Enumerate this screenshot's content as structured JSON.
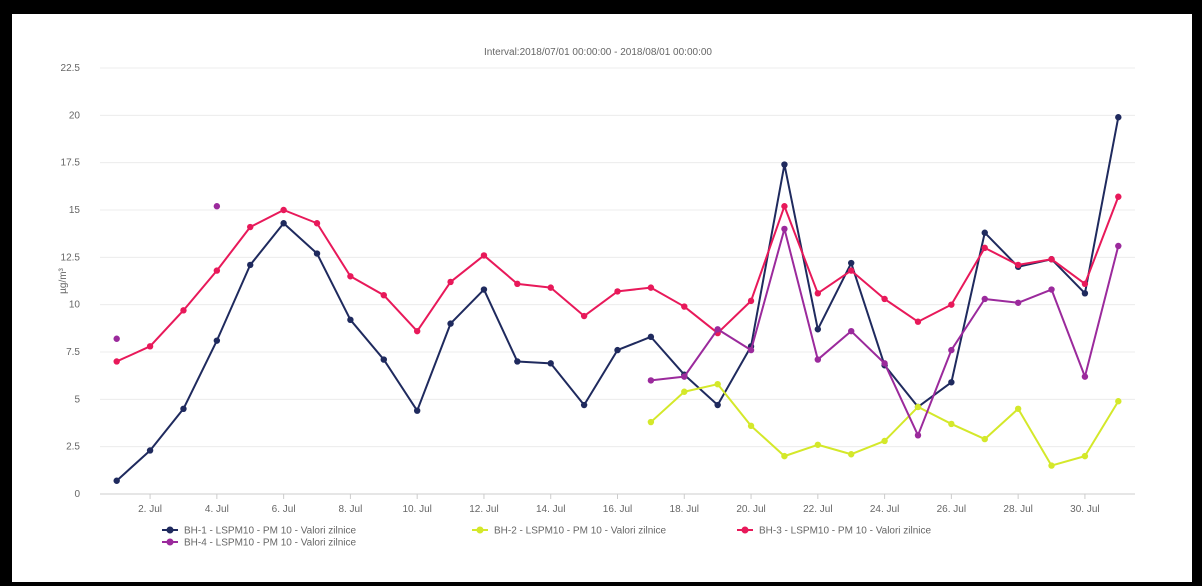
{
  "chart_data": {
    "type": "line",
    "title": "Interval:2018/07/01 00:00:00 - 2018/08/01 00:00:00",
    "ylabel": "µg/m³",
    "xlabel": "",
    "ylim": [
      0,
      22.5
    ],
    "yticks": [
      "0",
      "2.5",
      "5",
      "7.5",
      "10",
      "12.5",
      "15",
      "17.5",
      "20",
      "22.5"
    ],
    "xticks": [
      {
        "day": 2,
        "label": "2. Jul"
      },
      {
        "day": 4,
        "label": "4. Jul"
      },
      {
        "day": 6,
        "label": "6. Jul"
      },
      {
        "day": 8,
        "label": "8. Jul"
      },
      {
        "day": 10,
        "label": "10. Jul"
      },
      {
        "day": 12,
        "label": "12. Jul"
      },
      {
        "day": 14,
        "label": "14. Jul"
      },
      {
        "day": 16,
        "label": "16. Jul"
      },
      {
        "day": 18,
        "label": "18. Jul"
      },
      {
        "day": 20,
        "label": "20. Jul"
      },
      {
        "day": 22,
        "label": "22. Jul"
      },
      {
        "day": 24,
        "label": "24. Jul"
      },
      {
        "day": 26,
        "label": "26. Jul"
      },
      {
        "day": 28,
        "label": "28. Jul"
      },
      {
        "day": 30,
        "label": "30. Jul"
      }
    ],
    "x": [
      1,
      2,
      3,
      4,
      5,
      6,
      7,
      8,
      9,
      10,
      11,
      12,
      13,
      14,
      15,
      16,
      17,
      18,
      19,
      20,
      21,
      22,
      23,
      24,
      25,
      26,
      27,
      28,
      29,
      30,
      31
    ],
    "grid": true,
    "legend_position": "bottom",
    "series": [
      {
        "name": "BH-1 - LSPM10 - PM 10 - Valori zilnice",
        "color": "#1f2a5e",
        "values": [
          0.7,
          2.3,
          4.5,
          8.1,
          12.1,
          14.3,
          12.7,
          9.2,
          7.1,
          4.4,
          9.0,
          10.8,
          7.0,
          6.9,
          4.7,
          7.6,
          8.3,
          6.3,
          4.7,
          7.8,
          17.4,
          8.7,
          12.2,
          6.8,
          4.6,
          5.9,
          13.8,
          12.0,
          12.4,
          10.6,
          19.9
        ]
      },
      {
        "name": "BH-2 - LSPM10 - PM 10 - Valori zilnice",
        "color": "#d4e82a",
        "values": [
          null,
          null,
          null,
          null,
          null,
          null,
          null,
          null,
          null,
          null,
          null,
          null,
          null,
          null,
          null,
          null,
          3.8,
          5.4,
          5.8,
          3.6,
          2.0,
          2.6,
          2.1,
          2.8,
          4.6,
          3.7,
          2.9,
          4.5,
          1.5,
          2.0,
          4.9
        ]
      },
      {
        "name": "BH-3 - LSPM10 - PM 10 - Valori zilnice",
        "color": "#e8195a",
        "values": [
          7.0,
          7.8,
          9.7,
          11.8,
          14.1,
          15.0,
          14.3,
          11.5,
          10.5,
          8.6,
          11.2,
          12.6,
          11.1,
          10.9,
          9.4,
          10.7,
          10.9,
          9.9,
          8.5,
          10.2,
          15.2,
          10.6,
          11.8,
          10.3,
          9.1,
          10.0,
          13.0,
          12.1,
          12.4,
          11.1,
          15.7
        ]
      },
      {
        "name": "BH-4 - LSPM10 - PM 10 - Valori zilnice",
        "color": "#9b2a9c",
        "values": [
          8.2,
          null,
          null,
          15.2,
          null,
          null,
          null,
          null,
          null,
          null,
          null,
          null,
          null,
          null,
          null,
          null,
          6.0,
          6.2,
          8.7,
          7.6,
          14.0,
          7.1,
          8.6,
          6.9,
          3.1,
          7.6,
          10.3,
          10.1,
          10.8,
          6.2,
          13.1
        ]
      }
    ]
  }
}
